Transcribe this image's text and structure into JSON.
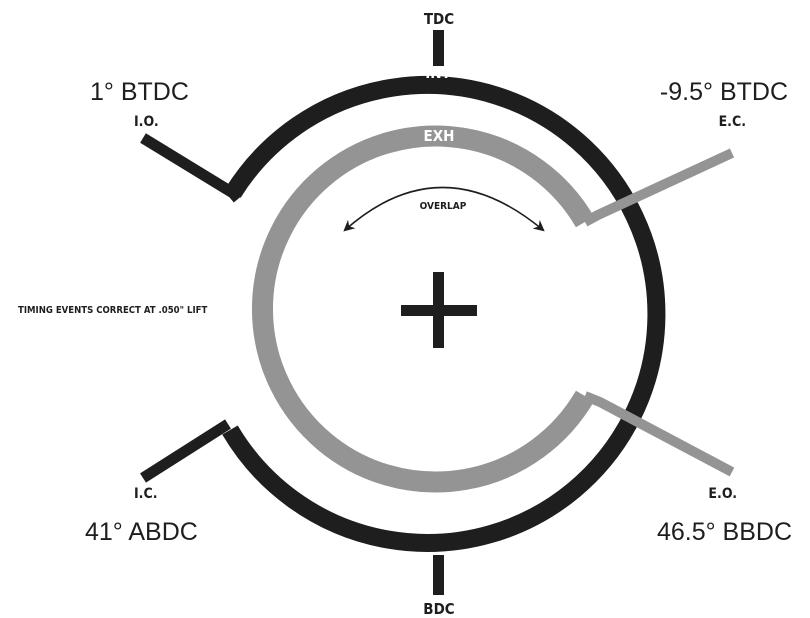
{
  "markers": {
    "top": "TDC",
    "bottom": "BDC"
  },
  "arcs": {
    "intake_label": "INT",
    "exhaust_label": "EXH",
    "intake_color": "#1e1e1e",
    "exhaust_color": "#949494"
  },
  "overlap_label": "OVERLAP",
  "note": "TIMING EVENTS CORRECT AT .050\" LIFT",
  "events": {
    "intake_open": {
      "abbr": "I.O.",
      "value": "1° BTDC"
    },
    "exhaust_close": {
      "abbr": "E.C.",
      "value": "-9.5° BTDC"
    },
    "intake_close": {
      "abbr": "I.C.",
      "value": "41° ABDC"
    },
    "exhaust_open": {
      "abbr": "E.O.",
      "value": "46.5° BBDC"
    }
  },
  "icons": {
    "center": "crosshair-plus-icon",
    "overlap": "double-arrow-icon"
  }
}
